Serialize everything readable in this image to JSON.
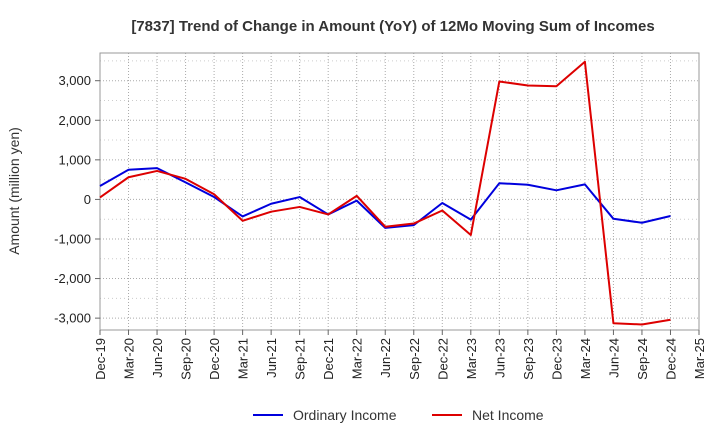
{
  "chart_data": {
    "type": "line",
    "title": "[7837]  Trend of Change in Amount (YoY) of 12Mo Moving Sum of Incomes",
    "xlabel": "",
    "ylabel": "Amount (million yen)",
    "ylim": [
      -3300,
      3700
    ],
    "yticks": [
      3000,
      2000,
      1000,
      0,
      -1000,
      -2000,
      -3000
    ],
    "ytick_labels": [
      "3,000",
      "2,000",
      "1,000",
      "0",
      "-1,000",
      "-2,000",
      "-3,000"
    ],
    "categories": [
      "Dec-19",
      "Mar-20",
      "Jun-20",
      "Sep-20",
      "Dec-20",
      "Mar-21",
      "Jun-21",
      "Sep-21",
      "Dec-21",
      "Mar-22",
      "Jun-22",
      "Sep-22",
      "Dec-22",
      "Mar-23",
      "Jun-23",
      "Sep-23",
      "Dec-23",
      "Mar-24",
      "Jun-24",
      "Sep-24",
      "Dec-24",
      "Mar-25"
    ],
    "series": [
      {
        "name": "Ordinary Income",
        "color": "#0000dd",
        "values": [
          340,
          750,
          790,
          430,
          60,
          -430,
          -110,
          60,
          -380,
          -30,
          -720,
          -650,
          -90,
          -510,
          410,
          370,
          230,
          380,
          -490,
          -590,
          -420,
          null
        ]
      },
      {
        "name": "Net Income",
        "color": "#dd0000",
        "values": [
          50,
          560,
          720,
          520,
          130,
          -540,
          -310,
          -190,
          -380,
          90,
          -690,
          -610,
          -280,
          -900,
          2980,
          2880,
          2860,
          3480,
          -3130,
          -3160,
          -3040,
          null
        ]
      }
    ],
    "grid": true,
    "legend_position": "bottom-center"
  }
}
